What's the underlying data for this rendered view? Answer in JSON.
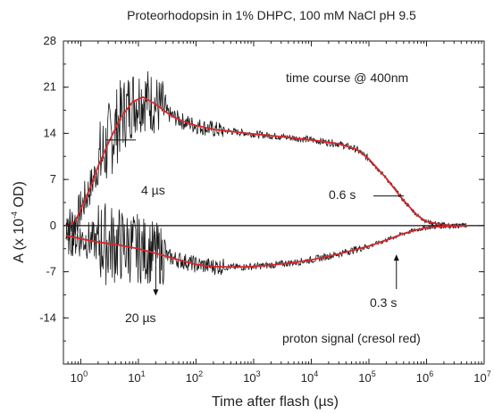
{
  "chart_data": {
    "type": "line",
    "title": "Proteorhodopsin in 1% DHPC, 100 mM NaCl pH 9.5",
    "xlabel": "Time after flash (µs)",
    "ylabel_prefix": "A (x 10",
    "ylabel_exp": "-4",
    "ylabel_suffix": " OD)",
    "x_scale": "log",
    "xlim": [
      0.5,
      10000000
    ],
    "ylim": [
      -21,
      28
    ],
    "x_ticks": [
      {
        "value": 1,
        "base": "10",
        "exp": "0"
      },
      {
        "value": 10,
        "base": "10",
        "exp": "1"
      },
      {
        "value": 100,
        "base": "10",
        "exp": "2"
      },
      {
        "value": 1000,
        "base": "10",
        "exp": "3"
      },
      {
        "value": 10000,
        "base": "10",
        "exp": "4"
      },
      {
        "value": 100000,
        "base": "10",
        "exp": "5"
      },
      {
        "value": 1000000,
        "base": "10",
        "exp": "6"
      },
      {
        "value": 10000000,
        "base": "10",
        "exp": "7"
      }
    ],
    "y_ticks": [
      {
        "value": 28,
        "label": "28"
      },
      {
        "value": 21,
        "label": "21"
      },
      {
        "value": 14,
        "label": "14"
      },
      {
        "value": 7,
        "label": "7"
      },
      {
        "value": 0,
        "label": "0"
      },
      {
        "value": -7,
        "label": "-7"
      },
      {
        "value": -14,
        "label": "-14"
      }
    ],
    "zero_line": 0,
    "grid": false,
    "series": [
      {
        "color": "#1a1a1a",
        "style": "noisy-data",
        "x": [
          0.55,
          0.8,
          1,
          1.5,
          2,
          3,
          5,
          8,
          12,
          20,
          35,
          60,
          100,
          200,
          500,
          1000,
          3000,
          10000,
          30000,
          60000,
          100000,
          200000,
          400000,
          700000,
          1000000,
          2000000,
          5000000
        ],
        "y": [
          0,
          0.6,
          2.5,
          6,
          9,
          12.5,
          16.5,
          18.8,
          19.5,
          18.4,
          16.8,
          15.8,
          15.2,
          14.6,
          14.2,
          13.9,
          13.5,
          13.0,
          12.4,
          11.6,
          10.1,
          7.2,
          3.8,
          1.5,
          0.6,
          0.1,
          0
        ]
      },
      {
        "color": "#d9262c",
        "style": "fit",
        "x": [
          0.55,
          0.8,
          1,
          1.5,
          2,
          3,
          5,
          8,
          12,
          20,
          35,
          60,
          100,
          200,
          500,
          1000,
          3000,
          10000,
          30000,
          60000,
          100000,
          200000,
          400000,
          700000,
          1000000,
          2000000,
          5000000
        ],
        "y": [
          0,
          0.6,
          2.5,
          6,
          9,
          12.5,
          16.5,
          18.8,
          19.5,
          18.4,
          16.8,
          15.8,
          15.2,
          14.6,
          14.2,
          13.9,
          13.5,
          13.0,
          12.4,
          11.6,
          10.1,
          7.2,
          3.8,
          1.5,
          0.6,
          0.1,
          0
        ]
      },
      {
        "color": "#1a1a1a",
        "style": "noisy-data",
        "x": [
          0.55,
          1,
          2,
          5,
          10,
          20,
          50,
          100,
          200,
          500,
          1000,
          2000,
          5000,
          10000,
          30000,
          100000,
          200000,
          400000,
          700000,
          1000000,
          2000000,
          5000000
        ],
        "y": [
          -1.5,
          -2.0,
          -2.5,
          -3.0,
          -3.5,
          -4.2,
          -5.2,
          -5.9,
          -6.2,
          -6.3,
          -6.2,
          -6.0,
          -5.6,
          -5.2,
          -4.3,
          -3.1,
          -2.2,
          -1.2,
          -0.6,
          -0.3,
          -0.1,
          0
        ]
      },
      {
        "color": "#d9262c",
        "style": "fit",
        "x": [
          0.55,
          1,
          2,
          5,
          10,
          20,
          50,
          100,
          200,
          500,
          1000,
          2000,
          5000,
          10000,
          30000,
          100000,
          200000,
          400000,
          700000,
          1000000,
          2000000,
          5000000
        ],
        "y": [
          -1.5,
          -2.0,
          -2.5,
          -3.0,
          -3.5,
          -4.2,
          -5.2,
          -5.9,
          -6.2,
          -6.3,
          -6.2,
          -6.0,
          -5.6,
          -5.2,
          -4.3,
          -3.1,
          -2.2,
          -1.2,
          -0.6,
          -0.3,
          -0.1,
          0
        ]
      }
    ],
    "annotations": [
      {
        "text": "time course @ 400nm"
      },
      {
        "text": "4 µs",
        "points_to": {
          "x": 4,
          "y": 13
        }
      },
      {
        "text": "0.6 s",
        "points_to": {
          "x": 600000,
          "y": 4.5
        }
      },
      {
        "text": "20 µs",
        "points_to": {
          "x": 20,
          "y": -10.5
        }
      },
      {
        "text": "0.3 s",
        "points_to": {
          "x": 300000,
          "y": -4.5
        }
      },
      {
        "text": "proton signal (cresol red)"
      }
    ]
  }
}
